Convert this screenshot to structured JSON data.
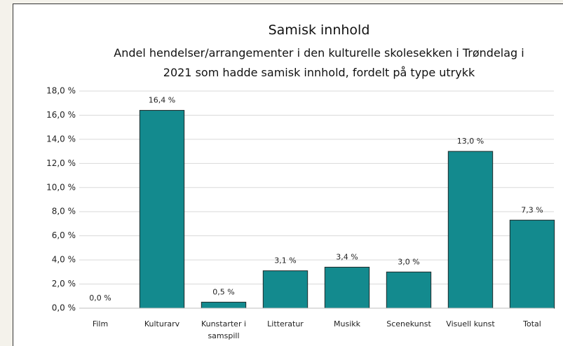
{
  "chart_data": {
    "type": "bar",
    "title": "Samisk innhold",
    "subtitle": "Andel hendelser/arrangementer i den kulturelle skolesekken i Trøndelag i 2021 som hadde samisk innhold, fordelt på type utrykk",
    "categories": [
      "Film",
      "Kulturarv",
      "Kunstarter i samspill",
      "Litteratur",
      "Musikk",
      "Scenekunst",
      "Visuell kunst",
      "Total"
    ],
    "values": [
      0.0,
      16.4,
      0.5,
      3.1,
      3.4,
      3.0,
      13.0,
      7.3
    ],
    "value_labels": [
      "0,0 %",
      "16,4 %",
      "0,5 %",
      "3,1 %",
      "3,4 %",
      "3,0 %",
      "13,0 %",
      "7,3 %"
    ],
    "color": "#138a8e",
    "ylim": [
      0,
      18
    ],
    "yticks": [
      {
        "value": 0,
        "label": "0,0 %"
      },
      {
        "value": 2,
        "label": "2,0 %"
      },
      {
        "value": 4,
        "label": "4,0 %"
      },
      {
        "value": 6,
        "label": "6,0 %"
      },
      {
        "value": 8,
        "label": "8,0 %"
      },
      {
        "value": 10,
        "label": "10,0 %"
      },
      {
        "value": 12,
        "label": "12,0 %"
      },
      {
        "value": 14,
        "label": "14,0 %"
      },
      {
        "value": 16,
        "label": "16,0 %"
      },
      {
        "value": 18,
        "label": "18,0 %"
      }
    ],
    "grid": true
  }
}
